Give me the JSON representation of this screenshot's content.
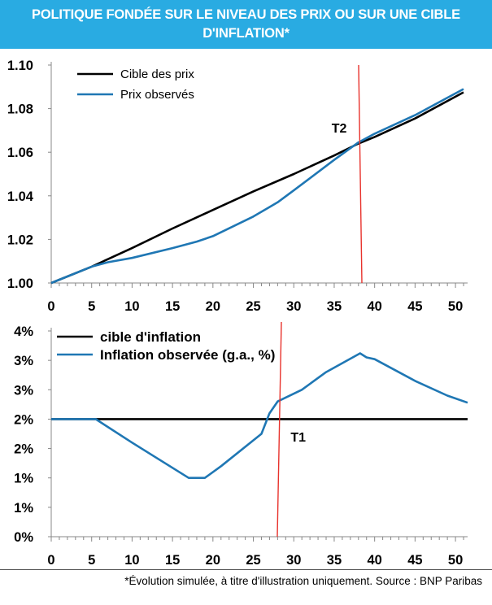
{
  "title": {
    "line1": "POLITIQUE FONDÉE SUR LE NIVEAU DES PRIX OU SUR UNE CIBLE",
    "line2": "D'INFLATION*"
  },
  "footnote": "*Évolution simulée, à titre d'illustration uniquement. Source : BNP Paribas",
  "colors": {
    "target": "#000000",
    "observed": "#1f77b4",
    "marker": "#e8322c",
    "title_bg": "#29abe2"
  },
  "chart_data": [
    {
      "type": "line",
      "title": "",
      "xlabel": "",
      "ylabel": "",
      "xlim": [
        0,
        51.5
      ],
      "ylim": [
        1.0,
        1.1
      ],
      "x_ticks": [
        0,
        5,
        10,
        15,
        20,
        25,
        30,
        35,
        40,
        45,
        50
      ],
      "y_ticks": [
        {
          "value": 1.0,
          "label": "1.00"
        },
        {
          "value": 1.02,
          "label": "1.02"
        },
        {
          "value": 1.04,
          "label": "1.04"
        },
        {
          "value": 1.06,
          "label": "1.06"
        },
        {
          "value": 1.08,
          "label": "1.08"
        },
        {
          "value": 1.1,
          "label": "1.10"
        }
      ],
      "legend_placement": "top-left",
      "series": [
        {
          "name": "Cible des prix",
          "color": "#000000",
          "x": [
            0,
            5,
            10,
            15,
            20,
            25,
            30,
            35,
            38,
            40,
            45,
            51
          ],
          "y": [
            1.0,
            1.0075,
            1.016,
            1.025,
            1.0335,
            1.042,
            1.05,
            1.0585,
            1.064,
            1.067,
            1.0755,
            1.0875
          ]
        },
        {
          "name": "Prix observés",
          "color": "#1f77b4",
          "x": [
            0,
            5,
            7,
            10,
            15,
            18,
            20,
            25,
            28,
            30,
            35,
            38,
            40,
            45,
            51
          ],
          "y": [
            1.0,
            1.0075,
            1.0095,
            1.0115,
            1.016,
            1.019,
            1.0215,
            1.0305,
            1.037,
            1.0425,
            1.0565,
            1.0645,
            1.0685,
            1.077,
            1.089
          ]
        }
      ],
      "annotations": [
        {
          "text": "T2",
          "x": 38.3
        }
      ]
    },
    {
      "type": "line",
      "title": "",
      "xlabel": "",
      "ylabel": "",
      "xlim": [
        0,
        51.5
      ],
      "ylim": [
        0,
        3.5
      ],
      "x_ticks": [
        0,
        5,
        10,
        15,
        20,
        25,
        30,
        35,
        40,
        45,
        50
      ],
      "y_ticks": [
        {
          "value": 0.0,
          "label": "0%"
        },
        {
          "value": 0.5,
          "label": "1%"
        },
        {
          "value": 1.0,
          "label": "1%"
        },
        {
          "value": 1.5,
          "label": "2%"
        },
        {
          "value": 2.0,
          "label": "2%"
        },
        {
          "value": 2.5,
          "label": "3%"
        },
        {
          "value": 3.0,
          "label": "3%"
        },
        {
          "value": 3.5,
          "label": "4%"
        }
      ],
      "legend_placement": "top-left",
      "series": [
        {
          "name": "cible d'inflation",
          "color": "#000000",
          "x": [
            0,
            51.5
          ],
          "y": [
            2.0,
            2.0
          ]
        },
        {
          "name": "Inflation observée (g.a., %)",
          "color": "#1f77b4",
          "x": [
            0,
            5.5,
            10,
            17,
            19,
            21,
            26,
            27,
            28,
            31,
            34,
            38.2,
            39,
            40,
            45,
            49,
            51.5
          ],
          "y": [
            2.0,
            2.0,
            1.6,
            1.0,
            1.0,
            1.2,
            1.75,
            2.1,
            2.3,
            2.5,
            2.8,
            3.12,
            3.05,
            3.02,
            2.65,
            2.4,
            2.28
          ]
        }
      ],
      "annotations": [
        {
          "text": "T1",
          "x": 28
        }
      ]
    }
  ]
}
